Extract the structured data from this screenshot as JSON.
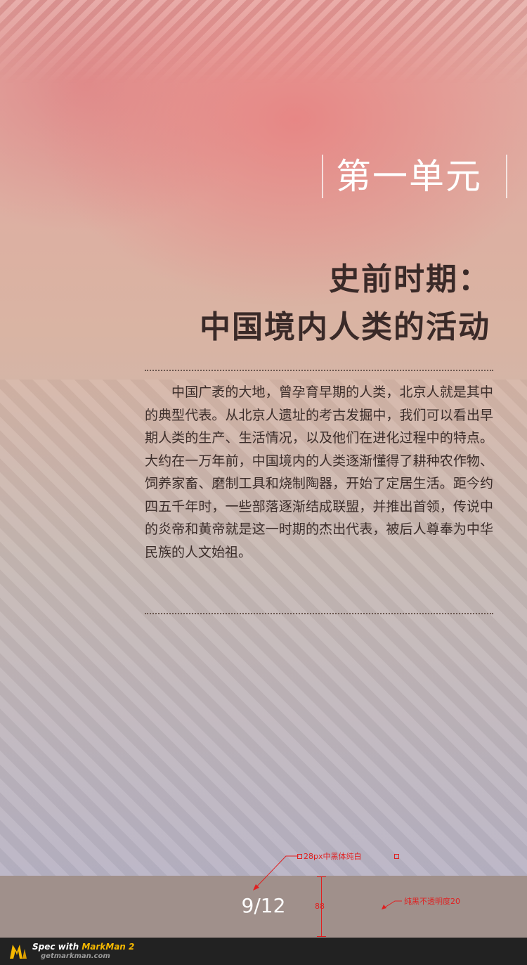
{
  "unit": {
    "title": "第一单元"
  },
  "lesson": {
    "title_line1": "史前时期：",
    "title_line2": "中国境内人类的活动"
  },
  "body": {
    "paragraph": "中国广袤的大地，曾孕育早期的人类，北京人就是其中的典型代表。从北京人遗址的考古发掘中，我们可以看出早期人类的生产、生活情况，以及他们在进化过程中的特点。大约在一万年前，中国境内的人类逐渐懂得了耕种农作物、饲养家畜、磨制工具和烧制陶器，开始了定居生活。距今约四五千年时，一些部落逐渐结成联盟，并推出首领，传说中的炎帝和黄帝就是这一时期的杰出代表，被后人尊奉为中华民族的人文始祖。"
  },
  "pager": {
    "text": "9/12"
  },
  "annotations": {
    "font_note": "28px中黑体纯白",
    "height_note": "88",
    "bg_note": "纯黑不透明度20"
  },
  "footer": {
    "spec_prefix": "Spec with ",
    "spec_brand": "MarkMan 2",
    "site": "getmarkman.com"
  },
  "colors": {
    "bar_bg": "rgba(0,0,0,0.2)",
    "annotation": "#e02020",
    "pager_text": "#ffffff"
  }
}
